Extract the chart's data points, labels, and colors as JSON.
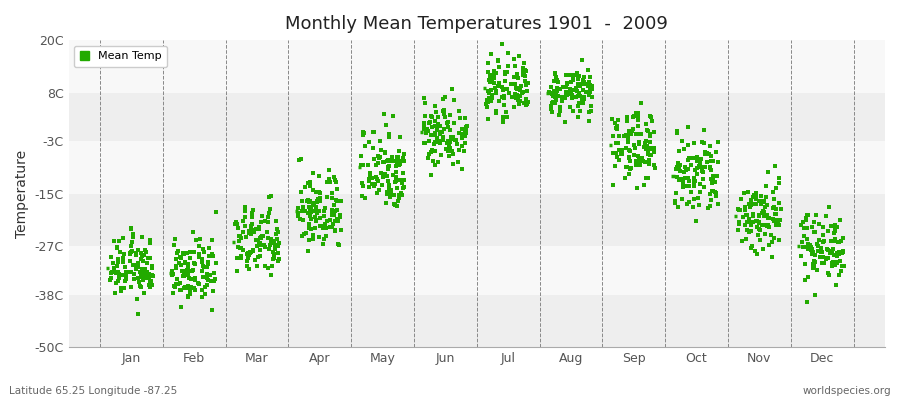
{
  "title": "Monthly Mean Temperatures 1901  -  2009",
  "ylabel": "Temperature",
  "subtitle_left": "Latitude 65.25 Longitude -87.25",
  "subtitle_right": "worldspecies.org",
  "yticks": [
    -50,
    -38,
    -27,
    -15,
    -3,
    8,
    20
  ],
  "ytick_labels": [
    "-50C",
    "-38C",
    "-27C",
    "-15C",
    "-3C",
    "8C",
    "20C"
  ],
  "months": [
    "Jan",
    "Feb",
    "Mar",
    "Apr",
    "May",
    "Jun",
    "Jul",
    "Aug",
    "Sep",
    "Oct",
    "Nov",
    "Dec"
  ],
  "dot_color": "#22aa00",
  "background_color": "#ffffff",
  "band_colors": [
    "#eeeeee",
    "#f8f8f8"
  ],
  "legend_label": "Mean Temp",
  "monthly_means": [
    -32,
    -33,
    -26,
    -19,
    -9,
    -1,
    9,
    8,
    -4,
    -11,
    -20,
    -27
  ],
  "monthly_stds": [
    3.5,
    3.5,
    4.0,
    4.5,
    5.0,
    4.0,
    3.0,
    2.5,
    4.0,
    5.0,
    4.5,
    4.0
  ],
  "monthly_spread": [
    0.35,
    0.35,
    0.35,
    0.35,
    0.35,
    0.35,
    0.35,
    0.35,
    0.35,
    0.35,
    0.35,
    0.35
  ],
  "n_points": 109,
  "marker_size": 7,
  "ylim": [
    -50,
    20
  ],
  "xlim": [
    0,
    13
  ]
}
